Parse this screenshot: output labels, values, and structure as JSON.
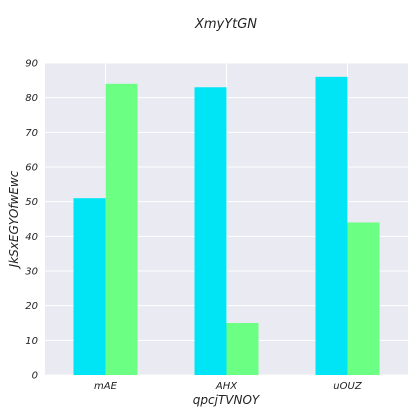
{
  "chart_data": {
    "type": "bar",
    "title": "XmyYtGN",
    "xlabel": "qpcjTVNOY",
    "ylabel": "JkSxEGYOfwEwc",
    "categories": [
      "mAE",
      "AHX",
      "uOUZ"
    ],
    "series": [
      {
        "values": [
          51,
          83,
          86
        ],
        "color": "#00e5f5"
      },
      {
        "values": [
          84,
          15,
          44
        ],
        "color": "#6bff84"
      }
    ],
    "ylim": [
      0,
      90
    ],
    "yticks": [
      0,
      10,
      20,
      30,
      40,
      50,
      60,
      70,
      80,
      90
    ],
    "grid": true,
    "background": "#eaeaf2"
  }
}
